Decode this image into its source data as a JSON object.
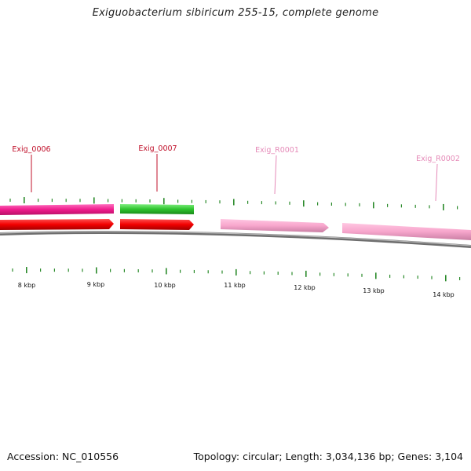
{
  "title": "Exiguobacterium sibiricum 255-15, complete genome",
  "footer": {
    "accession": "Accession: NC_010556",
    "summary": "Topology: circular; Length: 3,034,136 bp; Genes: 3,104"
  },
  "colors": {
    "backbone": "#8a8a8a",
    "tick": "#2a8a2a",
    "label_dark": "#c0102a",
    "label_light": "#e080b0"
  },
  "gene_labels": [
    {
      "text": "Exig_0006",
      "color": "#c0102a"
    },
    {
      "text": "Exig_0007",
      "color": "#c0102a"
    },
    {
      "text": "Exig_R0001",
      "color": "#e58ab8"
    },
    {
      "text": "Exig_R0002",
      "color": "#e58ab8"
    }
  ],
  "kbp_labels": [
    "8 kbp",
    "9 kbp",
    "10 kbp",
    "11 kbp",
    "12 kbp",
    "13 kbp",
    "14 kbp"
  ]
}
